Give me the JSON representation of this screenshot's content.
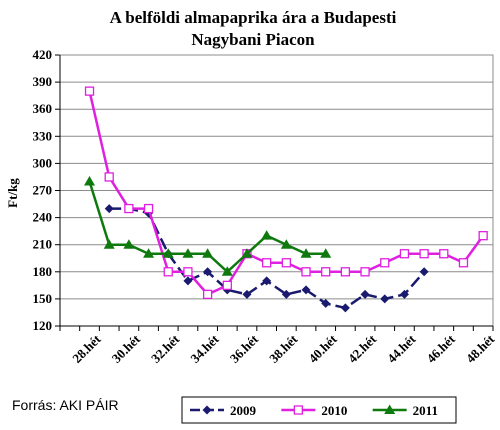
{
  "chart_data": {
    "type": "line",
    "title_lines": [
      "A belföldi almapaprika ára a Budapesti",
      "Nagybani Piacon"
    ],
    "ylabel": "Ft/kg",
    "xlabel": "",
    "ylim": [
      120,
      420
    ],
    "yticks": [
      120,
      150,
      180,
      210,
      240,
      270,
      300,
      330,
      360,
      390,
      420
    ],
    "x_range": [
      27,
      48
    ],
    "x_ticks": [
      {
        "week": 28,
        "label": "28.hét"
      },
      {
        "week": 30,
        "label": "30.hét"
      },
      {
        "week": 32,
        "label": "32.hét"
      },
      {
        "week": 34,
        "label": "34.hét"
      },
      {
        "week": 36,
        "label": "36.hét"
      },
      {
        "week": 38,
        "label": "38.hét"
      },
      {
        "week": 40,
        "label": "40.hét"
      },
      {
        "week": 42,
        "label": "42.hét"
      },
      {
        "week": 44,
        "label": "44.hét"
      },
      {
        "week": 46,
        "label": "46.hét"
      },
      {
        "week": 48,
        "label": "48.hét"
      }
    ],
    "grid": "y-major",
    "legend_position": "bottom",
    "series": [
      {
        "name": "2009",
        "color": "#1a1a6e",
        "dash": "dashed",
        "marker": "diamond",
        "weeks": [
          29,
          30,
          31,
          32,
          33,
          34,
          35,
          36,
          37,
          38,
          39,
          40,
          41,
          42,
          43,
          44,
          45
        ],
        "values": [
          250,
          250,
          245,
          200,
          170,
          180,
          160,
          155,
          170,
          155,
          160,
          145,
          140,
          155,
          150,
          155,
          180
        ]
      },
      {
        "name": "2010",
        "color": "#e020e0",
        "dash": "solid",
        "marker": "square",
        "weeks": [
          28,
          29,
          30,
          31,
          32,
          33,
          34,
          35,
          36,
          37,
          38,
          39,
          40,
          41,
          42,
          43,
          44,
          45,
          46,
          47,
          48
        ],
        "values": [
          380,
          285,
          250,
          250,
          180,
          180,
          155,
          165,
          200,
          190,
          190,
          180,
          180,
          180,
          180,
          190,
          200,
          200,
          200,
          190,
          220
        ]
      },
      {
        "name": "2011",
        "color": "#0e7a0e",
        "dash": "solid",
        "marker": "triangle",
        "weeks": [
          28,
          29,
          30,
          31,
          32,
          33,
          34,
          35,
          36,
          37,
          38,
          39,
          40
        ],
        "values": [
          280,
          210,
          210,
          200,
          200,
          200,
          200,
          180,
          200,
          220,
          210,
          200,
          200
        ]
      }
    ]
  },
  "source_text": "Forrás: AKI PÁIR"
}
